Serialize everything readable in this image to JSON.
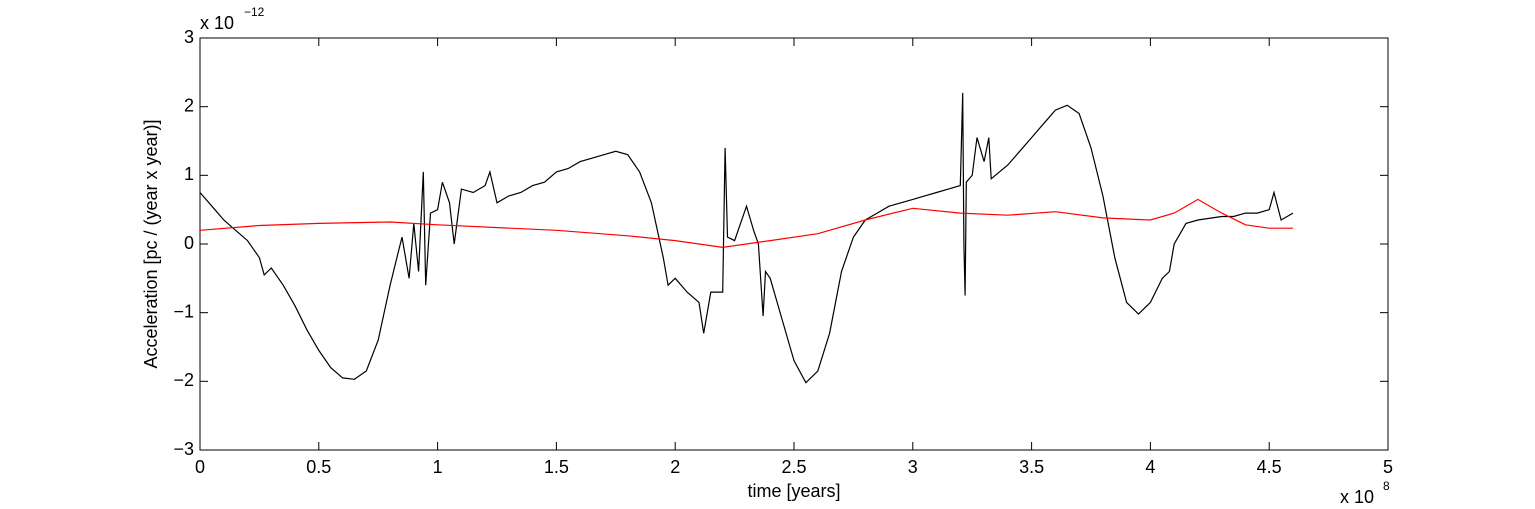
{
  "chart_data": {
    "type": "line",
    "x_label": "time [years]",
    "y_label": "Acceleration [pc / (year x year)]",
    "x_multiplier": {
      "base": "x 10",
      "exponent": "8"
    },
    "y_multiplier": {
      "base": "x 10",
      "exponent": "−12"
    },
    "xlim": [
      0,
      5
    ],
    "ylim": [
      -3,
      3
    ],
    "xticks": [
      0,
      0.5,
      1,
      1.5,
      2,
      2.5,
      3,
      3.5,
      4,
      4.5,
      5
    ],
    "yticks": [
      {
        "value": -3,
        "label": "−3"
      },
      {
        "value": -2,
        "label": "−2"
      },
      {
        "value": -1,
        "label": "−1"
      },
      0,
      1,
      2,
      3
    ],
    "grid": false,
    "series": [
      {
        "color": "#000000",
        "x": [
          0,
          0.05,
          0.1,
          0.15,
          0.2,
          0.25,
          0.27,
          0.3,
          0.35,
          0.4,
          0.45,
          0.5,
          0.55,
          0.6,
          0.65,
          0.7,
          0.75,
          0.8,
          0.85,
          0.88,
          0.9,
          0.92,
          0.94,
          0.95,
          0.97,
          1.0,
          1.02,
          1.05,
          1.07,
          1.1,
          1.15,
          1.2,
          1.22,
          1.25,
          1.3,
          1.35,
          1.4,
          1.45,
          1.5,
          1.55,
          1.6,
          1.65,
          1.7,
          1.75,
          1.8,
          1.85,
          1.9,
          1.95,
          1.97,
          2.0,
          2.05,
          2.1,
          2.12,
          2.15,
          2.2,
          2.21,
          2.22,
          2.25,
          2.3,
          2.33,
          2.35,
          2.37,
          2.38,
          2.4,
          2.45,
          2.5,
          2.55,
          2.6,
          2.65,
          2.7,
          2.75,
          2.8,
          2.85,
          2.9,
          2.95,
          3.0,
          3.05,
          3.1,
          3.15,
          3.2,
          3.21,
          3.215,
          3.22,
          3.225,
          3.25,
          3.27,
          3.3,
          3.32,
          3.33,
          3.4,
          3.45,
          3.5,
          3.55,
          3.6,
          3.65,
          3.7,
          3.75,
          3.8,
          3.85,
          3.9,
          3.95,
          4.0,
          4.05,
          4.08,
          4.1,
          4.15,
          4.2,
          4.3,
          4.35,
          4.4,
          4.45,
          4.5,
          4.52,
          4.55,
          4.6
        ],
        "values": [
          0.75,
          0.55,
          0.35,
          0.2,
          0.05,
          -0.2,
          -0.45,
          -0.35,
          -0.6,
          -0.9,
          -1.25,
          -1.55,
          -1.8,
          -1.95,
          -1.97,
          -1.85,
          -1.4,
          -0.6,
          0.1,
          -0.5,
          0.3,
          -0.4,
          1.05,
          -0.6,
          0.45,
          0.5,
          0.9,
          0.6,
          0.0,
          0.8,
          0.75,
          0.85,
          1.05,
          0.6,
          0.7,
          0.75,
          0.85,
          0.9,
          1.05,
          1.1,
          1.2,
          1.25,
          1.3,
          1.35,
          1.3,
          1.05,
          0.6,
          -0.2,
          -0.6,
          -0.5,
          -0.7,
          -0.85,
          -1.3,
          -0.7,
          -0.7,
          1.4,
          0.1,
          0.05,
          0.55,
          0.2,
          0.0,
          -1.05,
          -0.4,
          -0.5,
          -1.1,
          -1.7,
          -2.02,
          -1.85,
          -1.3,
          -0.4,
          0.1,
          0.35,
          0.45,
          0.55,
          0.6,
          0.65,
          0.7,
          0.75,
          0.8,
          0.85,
          2.2,
          0.0,
          -0.75,
          0.9,
          1.0,
          1.55,
          1.2,
          1.55,
          0.95,
          1.15,
          1.35,
          1.55,
          1.75,
          1.95,
          2.02,
          1.9,
          1.4,
          0.7,
          -0.2,
          -0.85,
          -1.02,
          -0.85,
          -0.5,
          -0.4,
          0.0,
          0.3,
          0.35,
          0.4,
          0.4,
          0.45,
          0.45,
          0.5,
          0.75,
          0.35,
          0.45
        ]
      },
      {
        "color": "#ff0000",
        "x": [
          0,
          0.25,
          0.5,
          0.8,
          1.0,
          1.5,
          1.8,
          2.0,
          2.2,
          2.4,
          2.6,
          2.8,
          3.0,
          3.2,
          3.4,
          3.6,
          3.8,
          4.0,
          4.1,
          4.2,
          4.3,
          4.4,
          4.5,
          4.6
        ],
        "values": [
          0.2,
          0.27,
          0.3,
          0.32,
          0.28,
          0.2,
          0.12,
          0.05,
          -0.05,
          0.05,
          0.15,
          0.35,
          0.52,
          0.45,
          0.42,
          0.47,
          0.38,
          0.35,
          0.45,
          0.65,
          0.45,
          0.28,
          0.23,
          0.23
        ]
      }
    ]
  }
}
